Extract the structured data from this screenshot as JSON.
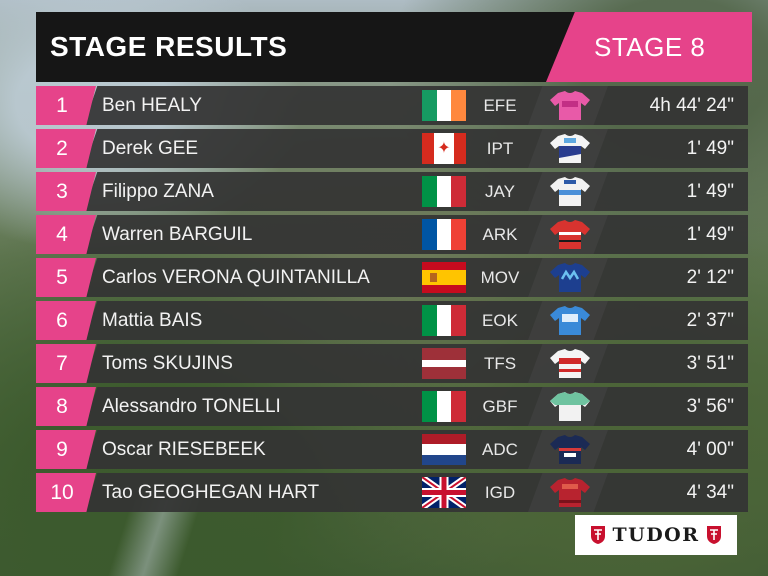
{
  "header": {
    "title": "STAGE RESULTS",
    "stage": "STAGE 8"
  },
  "results": [
    {
      "pos": "1",
      "name": "Ben HEALY",
      "nation": "IRL",
      "team": "EFE",
      "time": "4h 44' 24\"",
      "jersey": "pink-leader-jersey"
    },
    {
      "pos": "2",
      "name": "Derek GEE",
      "nation": "CAN",
      "team": "IPT",
      "time": "1' 49\"",
      "jersey": "israel-premier-tech-jersey"
    },
    {
      "pos": "3",
      "name": "Filippo ZANA",
      "nation": "ITA",
      "team": "JAY",
      "time": "1' 49\"",
      "jersey": "jayco-jersey"
    },
    {
      "pos": "4",
      "name": "Warren BARGUIL",
      "nation": "FRA",
      "team": "ARK",
      "time": "1' 49\"",
      "jersey": "arkea-jersey"
    },
    {
      "pos": "5",
      "name": "Carlos VERONA QUINTANILLA",
      "nation": "ESP",
      "team": "MOV",
      "time": "2' 12\"",
      "jersey": "movistar-jersey"
    },
    {
      "pos": "6",
      "name": "Mattia BAIS",
      "nation": "ITA",
      "team": "EOK",
      "time": "2' 37\"",
      "jersey": "eolo-kometa-jersey"
    },
    {
      "pos": "7",
      "name": "Toms SKUJINS",
      "nation": "LAT",
      "team": "TFS",
      "time": "3' 51\"",
      "jersey": "trek-segafredo-jersey"
    },
    {
      "pos": "8",
      "name": "Alessandro TONELLI",
      "nation": "ITA",
      "team": "GBF",
      "time": "3' 56\"",
      "jersey": "green-project-jersey"
    },
    {
      "pos": "9",
      "name": "Oscar RIESEBEEK",
      "nation": "NED",
      "team": "ADC",
      "time": "4' 00\"",
      "jersey": "alpecin-deceuninck-jersey"
    },
    {
      "pos": "10",
      "name": "Tao GEOGHEGAN HART",
      "nation": "GBR",
      "team": "IGD",
      "time": "4' 34\"",
      "jersey": "ineos-grenadiers-jersey"
    }
  ],
  "sponsor": {
    "name": "TUDOR"
  },
  "colors": {
    "accent": "#e6438a",
    "row": "#343434"
  }
}
